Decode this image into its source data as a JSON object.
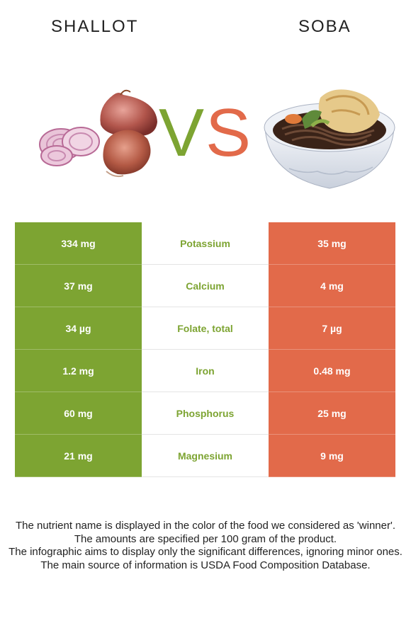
{
  "left_food": {
    "name": "SHALLOT",
    "color": "#7da432"
  },
  "right_food": {
    "name": "SOBA",
    "color": "#e26a4a"
  },
  "vs": {
    "v": "V",
    "s": "S"
  },
  "rows": [
    {
      "left": "334 mg",
      "nutrient": "Potassium",
      "right": "35 mg"
    },
    {
      "left": "37 mg",
      "nutrient": "Calcium",
      "right": "4 mg"
    },
    {
      "left": "34 µg",
      "nutrient": "Folate, total",
      "right": "7 µg"
    },
    {
      "left": "1.2 mg",
      "nutrient": "Iron",
      "right": "0.48 mg"
    },
    {
      "left": "60 mg",
      "nutrient": "Phosphorus",
      "right": "25 mg"
    },
    {
      "left": "21 mg",
      "nutrient": "Magnesium",
      "right": "9 mg"
    }
  ],
  "notes": [
    "The nutrient name is displayed in the color of the food we considered as 'winner'.",
    "The amounts are specified per 100 gram of the product.",
    "The infographic aims to display only the significant differences, ignoring minor ones.",
    "The main source of information is USDA Food Composition Database."
  ]
}
